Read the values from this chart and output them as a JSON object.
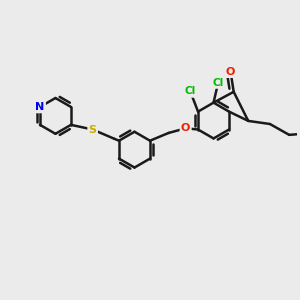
{
  "background_color": "#ebebeb",
  "bond_color": "#1a1a1a",
  "bond_width": 1.8,
  "atom_colors": {
    "Cl": "#00bb00",
    "O": "#ee2200",
    "N": "#0000ee",
    "S": "#ccaa00",
    "C": "#1a1a1a"
  },
  "figsize": [
    3.0,
    3.0
  ],
  "dpi": 100,
  "xlim": [
    -1.0,
    8.5
  ],
  "ylim": [
    -3.5,
    3.5
  ]
}
